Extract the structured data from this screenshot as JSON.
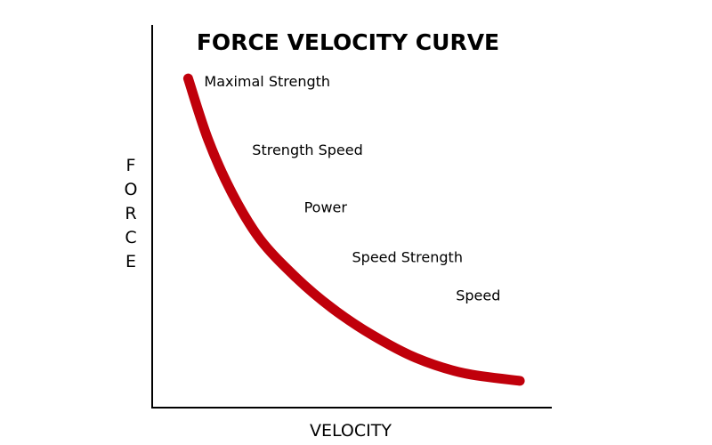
{
  "chart_data": {
    "type": "line",
    "title": "FORCE VELOCITY CURVE",
    "xlabel": "VELOCITY",
    "ylabel": "FORCE",
    "grid": false,
    "legend": "none",
    "xlim": [
      0,
      100
    ],
    "ylim": [
      0,
      100
    ],
    "series": [
      {
        "name": "Force-velocity",
        "color": "#c0000b",
        "x": [
          9,
          14,
          20,
          27,
          36,
          45,
          55,
          66,
          78,
          92
        ],
        "y": [
          86,
          70,
          56,
          44,
          34,
          26,
          19,
          13,
          9,
          7
        ]
      }
    ],
    "annotations": [
      {
        "text": "Maximal Strength",
        "x": 13,
        "y": 84
      },
      {
        "text": "Strength Speed",
        "x": 25,
        "y": 66
      },
      {
        "text": "Power",
        "x": 38,
        "y": 51
      },
      {
        "text": "Speed Strength",
        "x": 50,
        "y": 38
      },
      {
        "text": "Speed",
        "x": 76,
        "y": 28
      }
    ]
  }
}
